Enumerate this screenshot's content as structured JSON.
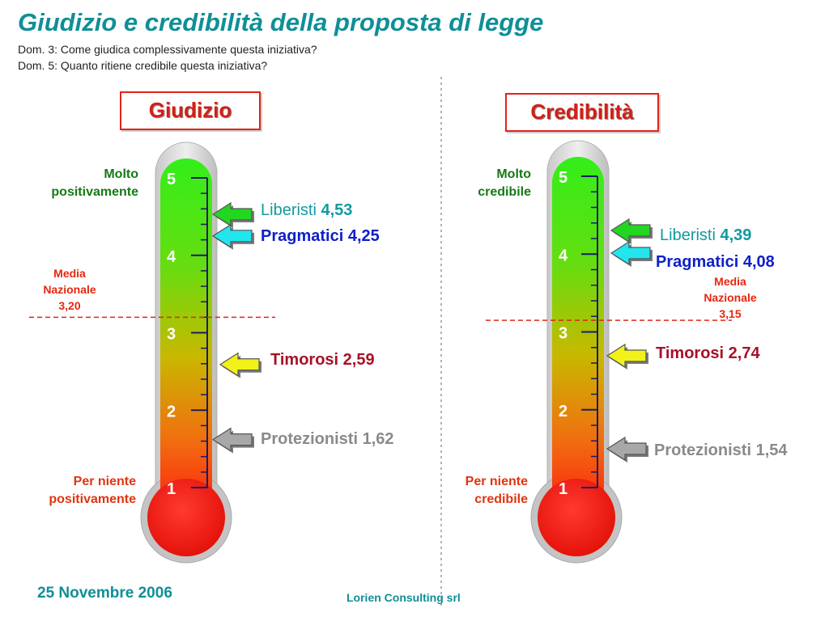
{
  "header": {
    "title": "Giudizio e credibilità della proposta di legge",
    "subtitle_1": "Dom. 3: Come giudica complessivamente questa iniziativa?",
    "subtitle_2": "Dom. 5: Quanto ritiene credibile questa iniziativa?"
  },
  "footer": {
    "date": "25 Novembre 2006",
    "company": "Lorien Consulting srl"
  },
  "colors": {
    "title": "#0f8f96",
    "box_border": "#e0241b",
    "liberisti_arrow": "#22d622",
    "pragmatici_arrow": "#22e6ee",
    "timorosi_arrow": "#f2f21a",
    "protezionisti_arrow": "#a8a8a8",
    "average_line": "#e0241b"
  },
  "chart_data": [
    {
      "type": "bar",
      "title": "Giudizio",
      "scale_ticks": [
        "1",
        "2",
        "3",
        "4",
        "5"
      ],
      "top_label": [
        "Molto",
        "positivamente"
      ],
      "bottom_label": [
        "Per niente",
        "positivamente"
      ],
      "ylim": [
        1,
        5
      ],
      "average": {
        "label": [
          "Media",
          "Nazionale",
          "3,20"
        ],
        "value": 3.2
      },
      "markers": [
        {
          "name": "Liberisti",
          "value": 4.53,
          "value_label": "4,53",
          "style": "liberisti"
        },
        {
          "name": "Pragmatici",
          "value": 4.25,
          "value_label": "4,25",
          "style": "pragmatici"
        },
        {
          "name": "Timorosi",
          "value": 2.59,
          "value_label": "2,59",
          "style": "timorosi"
        },
        {
          "name": "Protezionisti",
          "value": 1.62,
          "value_label": "1,62",
          "style": "protezionisti"
        }
      ]
    },
    {
      "type": "bar",
      "title": "Credibilità",
      "scale_ticks": [
        "1",
        "2",
        "3",
        "4",
        "5"
      ],
      "top_label": [
        "Molto",
        "credibile"
      ],
      "bottom_label": [
        "Per niente",
        "credibile"
      ],
      "ylim": [
        1,
        5
      ],
      "average": {
        "label": [
          "Media",
          "Nazionale",
          "3,15"
        ],
        "value": 3.15
      },
      "markers": [
        {
          "name": "Liberisti",
          "value": 4.39,
          "value_label": "4,39",
          "style": "liberisti"
        },
        {
          "name": "Pragmatici",
          "value": 4.08,
          "value_label": "4,08",
          "style": "pragmatici"
        },
        {
          "name": "Timorosi",
          "value": 2.74,
          "value_label": "2,74",
          "style": "timorosi"
        },
        {
          "name": "Protezionisti",
          "value": 1.54,
          "value_label": "1,54",
          "style": "protezionisti"
        }
      ]
    }
  ]
}
